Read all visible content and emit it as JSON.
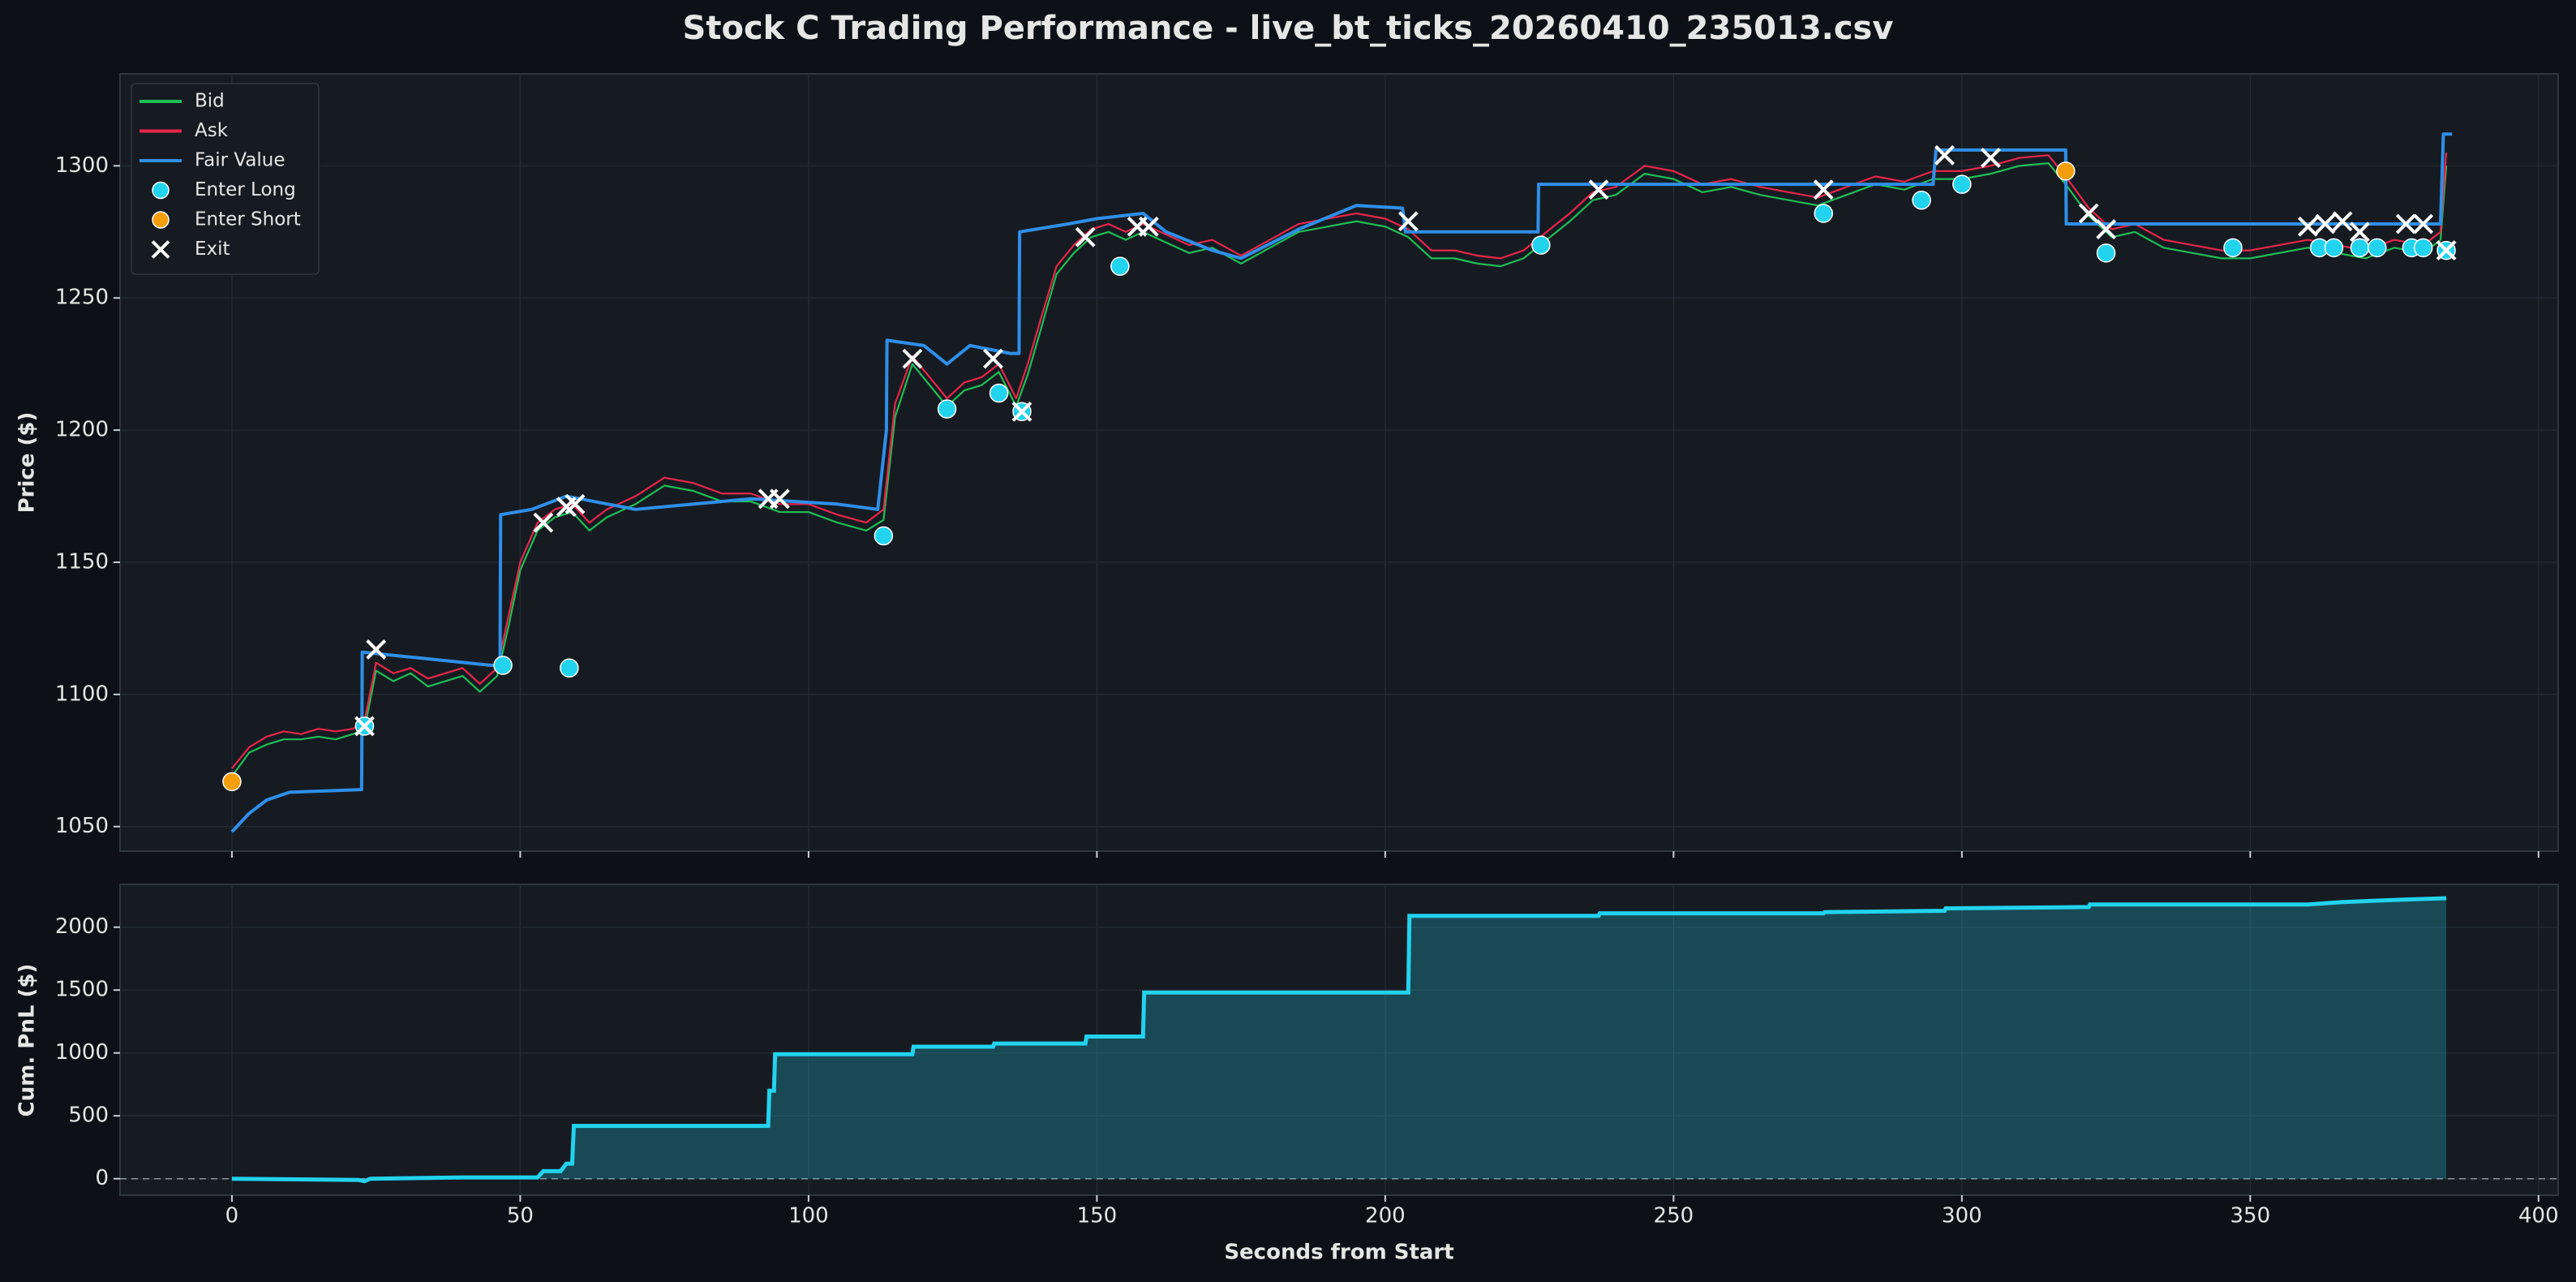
{
  "chart_data": [
    {
      "type": "line",
      "title": "Stock C Trading Performance - live_bt_ticks_20260410_235013.csv",
      "ylabel": "Price ($)",
      "xlim": [
        -19.4,
        403.4
      ],
      "ylim": [
        1040.7,
        1334.8
      ],
      "yticks": [
        1050,
        1100,
        1150,
        1200,
        1250,
        1300
      ],
      "grid": true,
      "legend": "upper left",
      "series": [
        {
          "name": "Bid",
          "kind": "line",
          "color": "#1fbf55",
          "x": [
            0,
            3,
            6,
            9,
            12,
            15,
            18,
            21,
            23,
            25,
            28,
            31,
            34,
            37,
            40,
            43,
            46,
            48,
            50,
            53,
            56,
            59,
            62,
            65,
            70,
            75,
            80,
            85,
            90,
            95,
            100,
            105,
            110,
            113,
            115,
            118,
            121,
            124,
            127,
            130,
            133,
            136,
            138,
            140,
            143,
            146,
            149,
            152,
            155,
            158,
            162,
            166,
            170,
            175,
            180,
            185,
            190,
            195,
            200,
            204,
            208,
            212,
            216,
            220,
            224,
            228,
            232,
            236,
            240,
            245,
            250,
            255,
            260,
            265,
            270,
            275,
            280,
            285,
            290,
            295,
            300,
            305,
            310,
            315,
            318,
            322,
            326,
            330,
            335,
            340,
            345,
            350,
            355,
            360,
            365,
            370,
            375,
            380,
            383,
            384
          ],
          "values": [
            1069,
            1078,
            1081,
            1083,
            1083,
            1084,
            1083,
            1085,
            1087,
            1109,
            1105,
            1108,
            1103,
            1105,
            1107,
            1101,
            1107,
            1126,
            1147,
            1162,
            1167,
            1169,
            1162,
            1167,
            1172,
            1179,
            1177,
            1173,
            1173,
            1169,
            1169,
            1165,
            1162,
            1166,
            1205,
            1225,
            1217,
            1209,
            1215,
            1217,
            1222,
            1209,
            1221,
            1236,
            1259,
            1267,
            1273,
            1275,
            1272,
            1275,
            1271,
            1267,
            1269,
            1263,
            1269,
            1275,
            1277,
            1279,
            1277,
            1273,
            1265,
            1265,
            1263,
            1262,
            1265,
            1272,
            1279,
            1287,
            1289,
            1297,
            1295,
            1290,
            1292,
            1289,
            1287,
            1285,
            1289,
            1293,
            1291,
            1295,
            1295,
            1297,
            1300,
            1301,
            1293,
            1281,
            1273,
            1275,
            1269,
            1267,
            1265,
            1265,
            1267,
            1269,
            1267,
            1265,
            1269,
            1267,
            1272,
            1300
          ]
        },
        {
          "name": "Ask",
          "kind": "line",
          "color": "#e8264a",
          "x": [
            0,
            3,
            6,
            9,
            12,
            15,
            18,
            21,
            23,
            25,
            28,
            31,
            34,
            37,
            40,
            43,
            46,
            48,
            50,
            53,
            56,
            59,
            62,
            65,
            70,
            75,
            80,
            85,
            90,
            95,
            100,
            105,
            110,
            113,
            115,
            118,
            121,
            124,
            127,
            130,
            133,
            136,
            138,
            140,
            143,
            146,
            149,
            152,
            155,
            158,
            162,
            166,
            170,
            175,
            180,
            185,
            190,
            195,
            200,
            204,
            208,
            212,
            216,
            220,
            224,
            228,
            232,
            236,
            240,
            245,
            250,
            255,
            260,
            265,
            270,
            275,
            280,
            285,
            290,
            295,
            300,
            305,
            310,
            315,
            318,
            322,
            326,
            330,
            335,
            340,
            345,
            350,
            355,
            360,
            365,
            370,
            375,
            380,
            383,
            384
          ],
          "values": [
            1072,
            1080,
            1084,
            1086,
            1085,
            1087,
            1086,
            1087,
            1090,
            1112,
            1108,
            1110,
            1106,
            1108,
            1110,
            1104,
            1110,
            1130,
            1150,
            1165,
            1170,
            1172,
            1165,
            1170,
            1175,
            1182,
            1180,
            1176,
            1176,
            1172,
            1172,
            1168,
            1165,
            1170,
            1210,
            1228,
            1220,
            1212,
            1218,
            1220,
            1225,
            1212,
            1225,
            1240,
            1262,
            1270,
            1276,
            1278,
            1275,
            1278,
            1274,
            1270,
            1272,
            1266,
            1272,
            1278,
            1280,
            1282,
            1280,
            1276,
            1268,
            1268,
            1266,
            1265,
            1268,
            1275,
            1282,
            1290,
            1292,
            1300,
            1298,
            1293,
            1295,
            1292,
            1290,
            1288,
            1292,
            1296,
            1294,
            1298,
            1298,
            1300,
            1303,
            1304,
            1296,
            1284,
            1276,
            1278,
            1272,
            1270,
            1268,
            1268,
            1270,
            1272,
            1270,
            1268,
            1272,
            1270,
            1275,
            1305
          ]
        },
        {
          "name": "Fair Value",
          "kind": "line",
          "color": "#2f8fe8",
          "x": [
            0,
            3,
            6,
            10,
            22.5,
            22.6,
            45,
            46.5,
            46.6,
            52,
            58,
            70,
            80,
            90,
            105,
            112,
            113.5,
            113.6,
            120,
            124,
            128,
            135,
            136.5,
            136.6,
            145,
            150,
            158,
            162,
            170,
            175,
            185,
            195,
            203,
            203.5,
            226.5,
            226.6,
            295,
            295.5,
            318,
            318.1,
            383,
            383.5,
            385
          ],
          "values": [
            1048,
            1055,
            1060,
            1063,
            1064,
            1116,
            1111,
            1111,
            1168,
            1170,
            1175,
            1170,
            1172,
            1174,
            1172,
            1170,
            1200,
            1234,
            1232,
            1225,
            1232,
            1229,
            1229,
            1275,
            1278,
            1280,
            1282,
            1275,
            1268,
            1265,
            1276,
            1285,
            1284,
            1275,
            1275,
            1293,
            1293,
            1306,
            1306,
            1278,
            1278,
            1312,
            1312
          ]
        },
        {
          "name": "Enter Long",
          "kind": "scatter",
          "marker": "o",
          "color": "#22d3ee",
          "x": [
            23,
            47,
            58.5,
            113,
            124,
            133,
            137,
            154,
            227,
            276,
            293,
            300,
            325,
            347,
            362,
            364.5,
            369,
            372,
            378,
            380,
            384
          ],
          "values": [
            1088,
            1111,
            1110,
            1160,
            1208,
            1214,
            1207,
            1262,
            1270,
            1282,
            1287,
            1293,
            1267,
            1269,
            1269,
            1269,
            1269,
            1269,
            1269,
            1269,
            1268
          ]
        },
        {
          "name": "Enter Short",
          "kind": "scatter",
          "marker": "o",
          "color": "#f59e0b",
          "x": [
            0,
            318
          ],
          "values": [
            1067,
            1298
          ]
        },
        {
          "name": "Exit",
          "kind": "scatter",
          "marker": "x",
          "color": "#ffffff",
          "x": [
            23,
            25,
            54,
            58,
            59.5,
            93,
            95,
            118,
            132,
            137,
            148,
            157,
            159,
            204,
            237,
            276,
            297,
            305,
            322,
            325,
            360,
            363,
            366,
            369,
            377,
            380,
            384
          ],
          "values": [
            1088,
            1117,
            1165,
            1171,
            1172,
            1174,
            1174,
            1227,
            1227,
            1207,
            1273,
            1277,
            1277,
            1279,
            1291,
            1291,
            1304,
            1303,
            1282,
            1276,
            1277,
            1278,
            1279,
            1275,
            1278,
            1278,
            1268
          ]
        }
      ]
    },
    {
      "type": "area",
      "ylabel": "Cum. PnL ($)",
      "xlabel": "Seconds from Start",
      "xlim": [
        -19.4,
        403.4
      ],
      "ylim": [
        -131,
        2340
      ],
      "xticks": [
        0,
        50,
        100,
        150,
        200,
        250,
        300,
        350,
        400
      ],
      "yticks": [
        0,
        500,
        1000,
        1500,
        2000
      ],
      "grid": true,
      "series": [
        {
          "kind": "line",
          "color": "#22d3ee",
          "x": [
            0,
            22,
            23,
            24,
            40,
            53,
            54,
            57,
            58,
            59,
            59.3,
            93,
            93.2,
            94,
            94.2,
            118,
            118.2,
            132,
            132.2,
            148,
            148.2,
            158,
            158.2,
            204,
            204.2,
            237,
            237.2,
            276,
            276.2,
            297,
            297.2,
            322,
            322.2,
            360,
            366,
            377,
            384
          ],
          "values": [
            0,
            -10,
            -20,
            0,
            10,
            10,
            60,
            60,
            120,
            120,
            420,
            420,
            700,
            700,
            990,
            990,
            1050,
            1050,
            1075,
            1075,
            1130,
            1130,
            1480,
            1480,
            2090,
            2090,
            2110,
            2110,
            2120,
            2130,
            2150,
            2160,
            2180,
            2180,
            2200,
            2220,
            2230
          ]
        }
      ]
    }
  ]
}
